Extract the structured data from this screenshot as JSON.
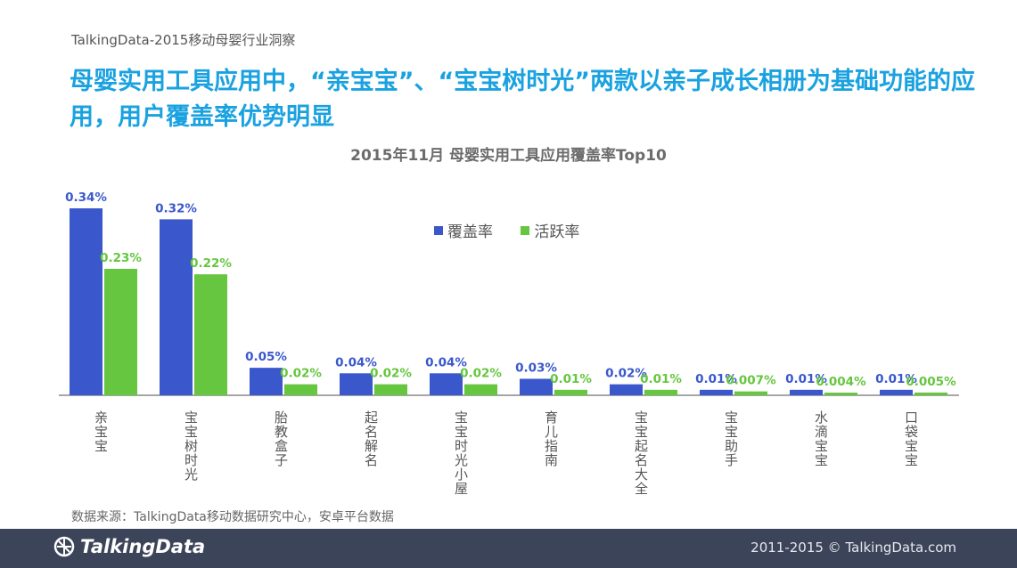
{
  "header": {
    "top_label": "TalkingData-2015移动母婴行业洞察",
    "headline": "母婴实用工具应用中，“亲宝宝”、“宝宝树时光”两款以亲子成长相册为基础功能的应用，用户覆盖率优势明显"
  },
  "chart_data": {
    "type": "bar",
    "title": "2015年11月  母婴实用工具应用覆盖率Top10",
    "categories": [
      "亲宝宝",
      "宝宝树时光",
      "胎教盒子",
      "起名解名",
      "宝宝时光小屋",
      "育儿指南",
      "宝宝起名大全",
      "宝宝助手",
      "水滴宝宝",
      "口袋宝宝"
    ],
    "series": [
      {
        "name": "覆盖率",
        "color": "#3a58cc",
        "values": [
          0.34,
          0.32,
          0.05,
          0.04,
          0.04,
          0.03,
          0.02,
          0.01,
          0.01,
          0.01
        ],
        "labels": [
          "0.34%",
          "0.32%",
          "0.05%",
          "0.04%",
          "0.04%",
          "0.03%",
          "0.02%",
          "0.01%",
          "0.01%",
          "0.01%"
        ]
      },
      {
        "name": "活跃率",
        "color": "#66c63f",
        "values": [
          0.23,
          0.22,
          0.02,
          0.02,
          0.02,
          0.01,
          0.01,
          0.007,
          0.004,
          0.005
        ],
        "labels": [
          "0.23%",
          "0.22%",
          "0.02%",
          "0.02%",
          "0.02%",
          "0.01%",
          "0.01%",
          "0.007%",
          "0.004%",
          "0.005%"
        ]
      }
    ],
    "ylim": [
      0,
      0.34
    ],
    "legend_position": "top-center",
    "grid": false
  },
  "source": "数据来源：TalkingData移动数据研究中心，安卓平台数据",
  "footer": {
    "logo_text": "TalkingData",
    "copyright": "2011-2015 © TalkingData.com"
  }
}
